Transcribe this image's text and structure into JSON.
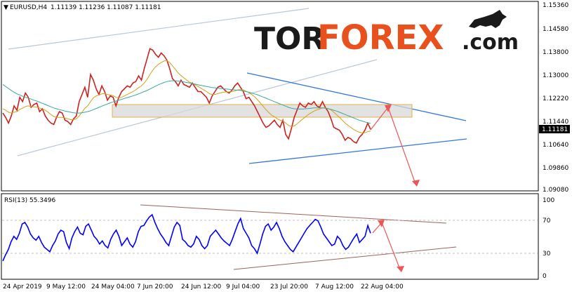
{
  "chart_data": [
    {
      "type": "line",
      "title": "EURUSD,H4  1.11139 1.11236 1.11087 1.11181",
      "symbol": "EURUSD,H4",
      "ohlc": [
        "1.11139",
        "1.11236",
        "1.11087",
        "1.11181"
      ],
      "current_price": "1.11181",
      "ylim": [
        1.0908,
        1.1553
      ],
      "yticks": [
        "1.15360",
        "1.14580",
        "1.13800",
        "1.13000",
        "1.12220",
        "1.11440",
        "1.10640",
        "1.09860",
        "1.09080"
      ],
      "grid": false,
      "series": [
        {
          "color": "#cc2222",
          "values": [
            1.1175,
            1.116,
            1.114,
            1.1165,
            1.12,
            1.1185,
            1.123,
            1.1215,
            1.1245,
            1.123,
            1.1195,
            1.1205,
            1.121,
            1.118,
            1.119,
            1.1165,
            1.115,
            1.114,
            1.1135,
            1.116,
            1.118,
            1.1175,
            1.115,
            1.1145,
            1.1135,
            1.1155,
            1.1165,
            1.1215,
            1.124,
            1.1265,
            1.123,
            1.131,
            1.129,
            1.126,
            1.124,
            1.127,
            1.125,
            1.122,
            1.1235,
            1.123,
            1.12,
            1.123,
            1.125,
            1.126,
            1.127,
            1.1265,
            1.128,
            1.1285,
            1.1305,
            1.129,
            1.133,
            1.1365,
            1.14,
            1.1395,
            1.138,
            1.137,
            1.1385,
            1.1375,
            1.136,
            1.133,
            1.1295,
            1.1285,
            1.127,
            1.129,
            1.1275,
            1.127,
            1.1265,
            1.128,
            1.1265,
            1.125,
            1.125,
            1.124,
            1.123,
            1.121,
            1.1235,
            1.125,
            1.1265,
            1.127,
            1.126,
            1.125,
            1.1245,
            1.1255,
            1.127,
            1.128,
            1.1265,
            1.125,
            1.1225,
            1.123,
            1.1215,
            1.12,
            1.118,
            1.116,
            1.114,
            1.1125,
            1.113,
            1.114,
            1.115,
            1.1135,
            1.1125,
            1.115,
            1.11,
            1.1085,
            1.112,
            1.116,
            1.1185,
            1.121,
            1.12,
            1.1195,
            1.121,
            1.1205,
            1.1215,
            1.12,
            1.1195,
            1.1215,
            1.1195,
            1.118,
            1.1155,
            1.1125,
            1.112,
            1.1115,
            1.11,
            1.108,
            1.109,
            1.1085,
            1.1075,
            1.107,
            1.109,
            1.11,
            1.1115,
            1.114,
            1.1118
          ]
        },
        {
          "name": "MA",
          "color": "#d4a017",
          "values": [
            1.119,
            1.1185,
            1.1178,
            1.1175,
            1.1178,
            1.118,
            1.1188,
            1.1192,
            1.1198,
            1.12,
            1.1198,
            1.1197,
            1.1196,
            1.1193,
            1.119,
            1.1185,
            1.1178,
            1.117,
            1.1163,
            1.116,
            1.116,
            1.116,
            1.1158,
            1.1155,
            1.1152,
            1.1152,
            1.1155,
            1.1165,
            1.1178,
            1.1192,
            1.12,
            1.1215,
            1.1228,
            1.1235,
            1.1238,
            1.1242,
            1.1243,
            1.124,
            1.1238,
            1.1236,
            1.123,
            1.1228,
            1.123,
            1.1235,
            1.124,
            1.1245,
            1.125,
            1.1256,
            1.1264,
            1.127,
            1.128,
            1.1293,
            1.131,
            1.1325,
            1.1337,
            1.1345,
            1.1352,
            1.1357,
            1.1358,
            1.1352,
            1.134,
            1.1328,
            1.1315,
            1.1306,
            1.1298,
            1.129,
            1.1283,
            1.1279,
            1.1274,
            1.1268,
            1.1262,
            1.1256,
            1.125,
            1.1243,
            1.124,
            1.124,
            1.1243,
            1.1246,
            1.1248,
            1.1249,
            1.1249,
            1.125,
            1.1252,
            1.1256,
            1.1257,
            1.1256,
            1.1251,
            1.1246,
            1.124,
            1.1232,
            1.1222,
            1.1211,
            1.1199,
            1.1187,
            1.1177,
            1.1168,
            1.1162,
            1.1155,
            1.115,
            1.1148,
            1.114,
            1.1132,
            1.1128,
            1.113,
            1.1137,
            1.1146,
            1.1154,
            1.1162,
            1.117,
            1.1176,
            1.1182,
            1.1186,
            1.1189,
            1.1193,
            1.1193,
            1.1191,
            1.1186,
            1.1178,
            1.1169,
            1.116,
            1.115,
            1.114,
            1.1132,
            1.1125,
            1.1118,
            1.1112,
            1.1108,
            1.1106,
            1.1106,
            1.111,
            1.1112
          ]
        },
        {
          "name": "MA",
          "color": "#3aa89a",
          "values": [
            1.1275,
            1.1268,
            1.1261,
            1.1254,
            1.1248,
            1.1242,
            1.1238,
            1.1234,
            1.123,
            1.1227,
            1.1224,
            1.122,
            1.1217,
            1.1213,
            1.1209,
            1.1205,
            1.1201,
            1.1197,
            1.1193,
            1.119,
            1.1187,
            1.1185,
            1.1182,
            1.118,
            1.1178,
            1.1176,
            1.1175,
            1.1175,
            1.1176,
            1.1178,
            1.118,
            1.1183,
            1.1187,
            1.1191,
            1.1195,
            1.1199,
            1.1203,
            1.1207,
            1.1211,
            1.1214,
            1.1217,
            1.122,
            1.1223,
            1.1226,
            1.1229,
            1.1232,
            1.1235,
            1.1238,
            1.1242,
            1.1246,
            1.125,
            1.1254,
            1.1259,
            1.1264,
            1.1269,
            1.1274,
            1.1278,
            1.1282,
            1.1285,
            1.1287,
            1.1288,
            1.1288,
            1.1287,
            1.1286,
            1.1284,
            1.1282,
            1.128,
            1.1278,
            1.1276,
            1.1274,
            1.1272,
            1.127,
            1.1268,
            1.1266,
            1.1264,
            1.1263,
            1.1262,
            1.1261,
            1.126,
            1.1259,
            1.1258,
            1.1257,
            1.1256,
            1.1255,
            1.1254,
            1.1252,
            1.125,
            1.1248,
            1.1245,
            1.1242,
            1.1239,
            1.1235,
            1.1231,
            1.1227,
            1.1223,
            1.1219,
            1.1215,
            1.1211,
            1.1207,
            1.1203,
            1.1199,
            1.1195,
            1.1192,
            1.119,
            1.1189,
            1.1189,
            1.1189,
            1.119,
            1.1191,
            1.1192,
            1.1193,
            1.1193,
            1.1193,
            1.1193,
            1.1192,
            1.119,
            1.1188,
            1.1185,
            1.1182,
            1.1178,
            1.1174,
            1.117,
            1.1166,
            1.1162,
            1.1158,
            1.1154,
            1.115,
            1.1147,
            1.1144,
            1.1141,
            1.1139
          ]
        }
      ]
    },
    {
      "type": "line",
      "title": "RSI(13) 55.3496",
      "ylim": [
        0,
        100
      ],
      "yticks": [
        "100",
        "70",
        "30",
        "0"
      ],
      "series": [
        {
          "color": "#0000ff",
          "values": [
            20,
            28,
            35,
            45,
            52,
            48,
            56,
            68,
            70,
            64,
            55,
            50,
            47,
            52,
            44,
            38,
            35,
            32,
            40,
            46,
            55,
            60,
            58,
            44,
            36,
            50,
            58,
            64,
            56,
            54,
            65,
            68,
            60,
            52,
            48,
            42,
            46,
            40,
            37,
            48,
            55,
            60,
            52,
            40,
            45,
            50,
            42,
            38,
            45,
            58,
            65,
            66,
            72,
            77,
            80,
            70,
            62,
            55,
            50,
            44,
            40,
            52,
            64,
            70,
            66,
            48,
            45,
            40,
            38,
            42,
            52,
            48,
            40,
            36,
            40,
            52,
            56,
            60,
            55,
            50,
            46,
            43,
            40,
            48,
            58,
            68,
            75,
            62,
            56,
            50,
            40,
            36,
            30,
            42,
            55,
            65,
            68,
            60,
            64,
            70,
            62,
            52,
            45,
            40,
            35,
            32,
            38,
            44,
            50,
            56,
            62,
            66,
            70,
            74,
            72,
            64,
            55,
            50,
            45,
            40,
            42,
            52,
            48,
            40,
            35,
            38,
            44,
            50,
            55,
            44,
            48,
            52,
            66,
            56
          ]
        }
      ]
    }
  ],
  "header": {
    "title": "EURUSD,H4",
    "values": "1.11139 1.11236 1.11087 1.11181"
  },
  "price_axis": {
    "labels": [
      "1.15360",
      "1.14580",
      "1.13800",
      "1.13000",
      "1.12220",
      "1.11440",
      "1.10640",
      "1.09860",
      "1.09080"
    ],
    "current": "1.11181"
  },
  "rsi_panel": {
    "title": "RSI(13) 55.3496",
    "labels": [
      "100",
      "70",
      "30",
      "0"
    ]
  },
  "time_axis": {
    "labels": [
      "24 Apr 2019",
      "9 May 12:00",
      "24 May 04:00",
      "7 Jun 20:00",
      "24 Jun 12:00",
      "9 Jul 04:00",
      "23 Jul 20:00",
      "7 Aug 12:00",
      "22 Aug 04:00"
    ]
  },
  "logo": {
    "part1": "TOR",
    "part2": "FOREX",
    "part3": ".com"
  },
  "colors": {
    "candles": "#cc2222",
    "ma_slow": "#3aa89a",
    "ma_fast": "#d4a017",
    "upper_channel": "#b8c8d8",
    "wedge_lines": "#3377dd",
    "forecast_arrow": "#ee5555",
    "rsi_line": "#0000ff",
    "rsi_trendlines": "#a06060",
    "resistance_zone": "#d8d8d8",
    "resistance_border": "#e0b050",
    "current_price_tag": "#000000"
  }
}
